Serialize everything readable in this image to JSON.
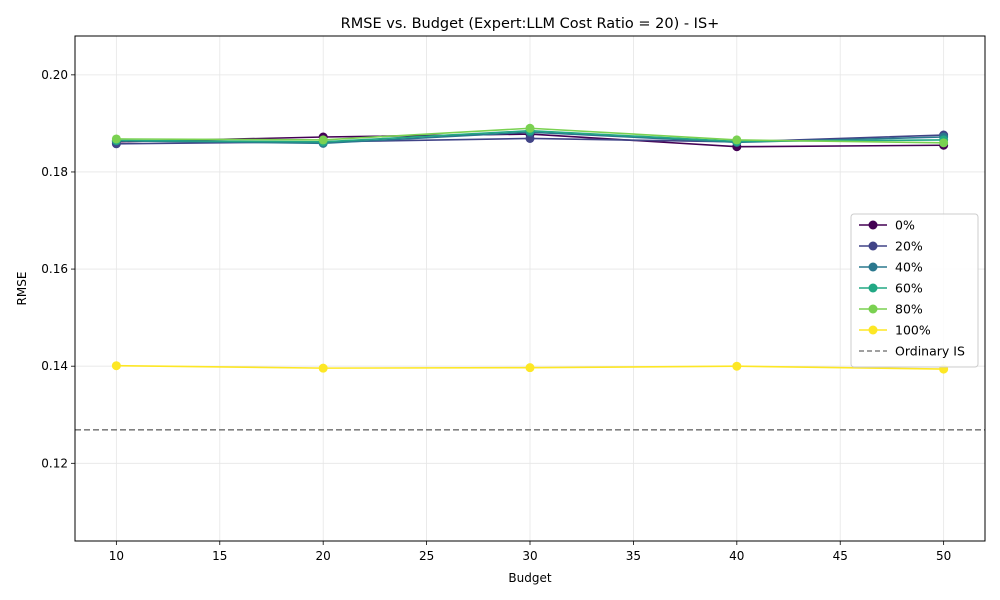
{
  "chart_data": {
    "type": "line",
    "title": "RMSE vs. Budget (Expert:LLM Cost Ratio = 20) - IS+",
    "xlabel": "Budget",
    "ylabel": "RMSE",
    "xlim": [
      8,
      52
    ],
    "ylim": [
      0.104,
      0.208
    ],
    "xticks": [
      10,
      15,
      20,
      25,
      30,
      35,
      40,
      45,
      50
    ],
    "yticks": [
      0.12,
      0.14,
      0.16,
      0.18,
      0.2
    ],
    "ytick_labels": [
      "0.12",
      "0.14",
      "0.16",
      "0.18",
      "0.20"
    ],
    "grid": true,
    "legend_position": "center-right",
    "x": [
      10,
      20,
      30,
      40,
      50
    ],
    "series": [
      {
        "name": "0%",
        "color": "#440154",
        "values": [
          0.1862,
          0.1872,
          0.1878,
          0.1852,
          0.1855
        ]
      },
      {
        "name": "20%",
        "color": "#414487",
        "values": [
          0.1858,
          0.1862,
          0.1869,
          0.1862,
          0.1876
        ]
      },
      {
        "name": "40%",
        "color": "#2a788e",
        "values": [
          0.1864,
          0.1859,
          0.1882,
          0.1861,
          0.1872
        ]
      },
      {
        "name": "60%",
        "color": "#22a884",
        "values": [
          0.1865,
          0.1862,
          0.1885,
          0.1863,
          0.1866
        ]
      },
      {
        "name": "80%",
        "color": "#7ad151",
        "values": [
          0.1868,
          0.1866,
          0.189,
          0.1866,
          0.186
        ]
      },
      {
        "name": "100%",
        "color": "#fde725",
        "values": [
          0.1401,
          0.1396,
          0.1397,
          0.14,
          0.1394
        ]
      }
    ],
    "reference_line": {
      "name": "Ordinary IS",
      "value": 0.1269,
      "color": "#808080",
      "style": "dashed"
    }
  }
}
